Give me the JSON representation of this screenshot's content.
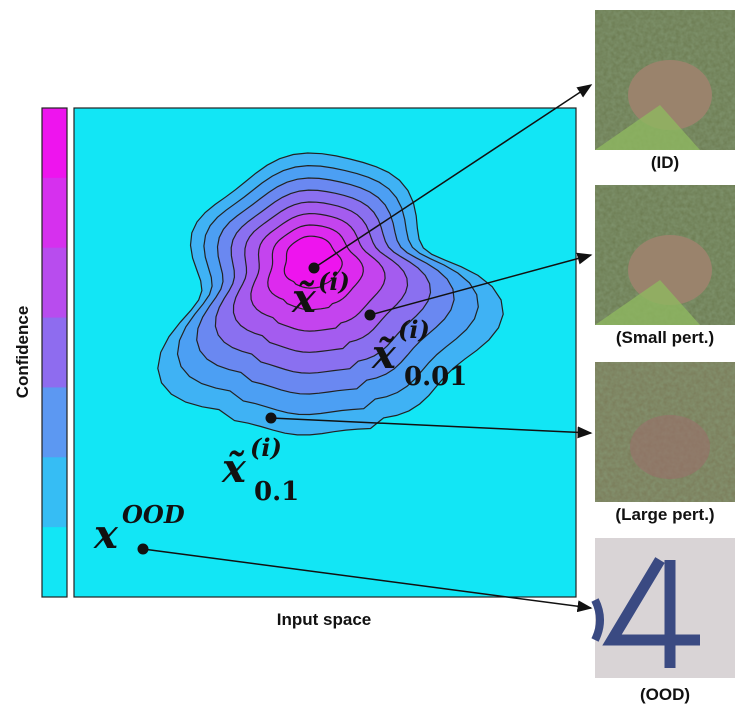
{
  "axes": {
    "y_label": "Confidence",
    "x_label": "Input space"
  },
  "points": [
    {
      "base": "x̃",
      "sup": "(i)"
    },
    {
      "base": "x̃",
      "sup": "(i)",
      "sub": "0.01"
    },
    {
      "base": "x̃",
      "sup": "(i)",
      "sub": "0.1"
    },
    {
      "base": "x",
      "sup": "OOD"
    }
  ],
  "images": [
    {
      "caption": "(ID)"
    },
    {
      "caption": "(Small pert.)"
    },
    {
      "caption": "(Large pert.)"
    },
    {
      "caption": "(OOD)"
    }
  ]
}
